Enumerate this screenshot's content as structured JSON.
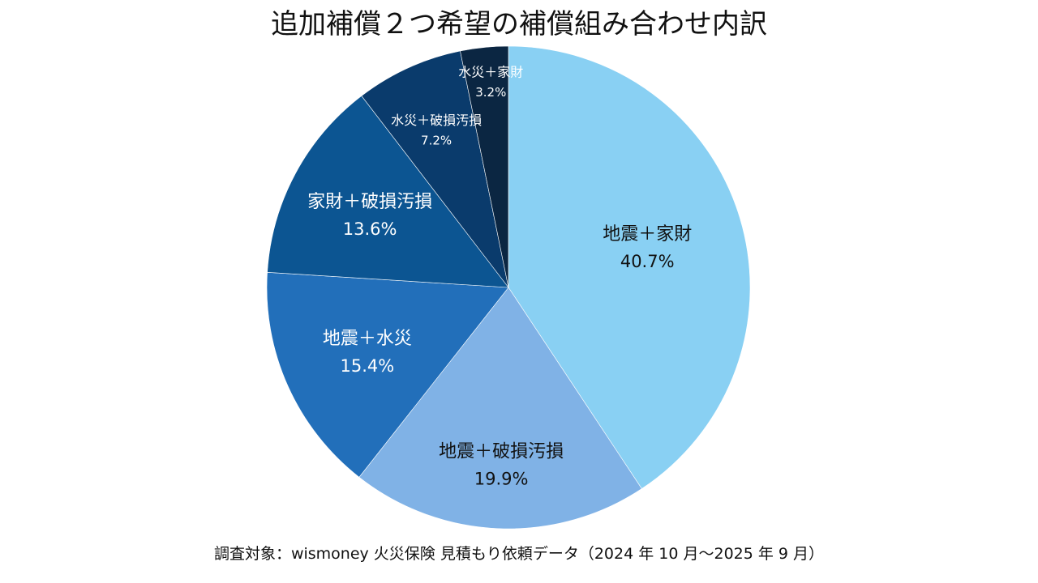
{
  "chart_data": {
    "type": "pie",
    "title": "追加補償２つ希望の補償組み合わせ内訳",
    "categories": [
      "地震＋家財",
      "地震＋破損汚損",
      "地震＋水災",
      "家財＋破損汚損",
      "水災＋破損汚損",
      "水災＋家財"
    ],
    "values": [
      40.7,
      19.9,
      15.4,
      13.6,
      7.2,
      3.2
    ],
    "value_labels": [
      "40.7%",
      "19.9%",
      "15.4%",
      "13.6%",
      "7.2%",
      "3.2%"
    ],
    "colors": [
      "#89d0f3",
      "#80b2e6",
      "#226fba",
      "#0c5592",
      "#0a3b6c",
      "#0b2642"
    ],
    "label_colors": [
      "#111111",
      "#111111",
      "#ffffff",
      "#ffffff",
      "#ffffff",
      "#ffffff"
    ],
    "start_angle": "12 o'clock",
    "direction": "clockwise",
    "legend": "none",
    "source": "調査対象：wismoney 火災保険 見積もり依頼データ（2024 年 10 月～2025 年 9 月）"
  }
}
